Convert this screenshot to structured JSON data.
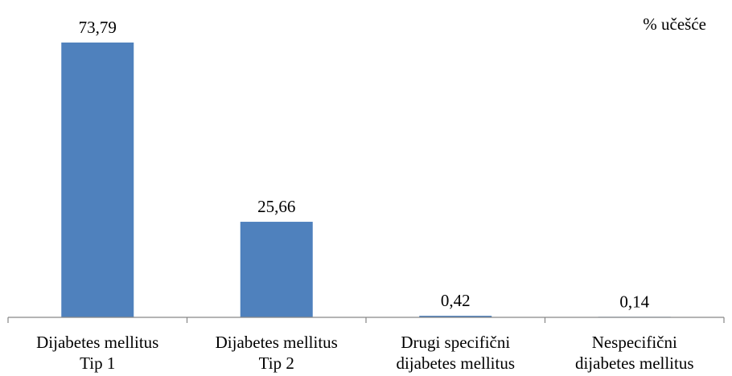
{
  "colors": {
    "bar": "#4f81bd",
    "axis": "#868686",
    "text": "#000000"
  },
  "chart_data": {
    "type": "bar",
    "unit_label": "% učešće",
    "categories": [
      [
        "Dijabetes mellitus",
        "Tip 1"
      ],
      [
        "Dijabetes mellitus",
        "Tip 2"
      ],
      [
        "Drugi specifični",
        "dijabetes mellitus"
      ],
      [
        "Nespecifični",
        "dijabetes mellitus"
      ]
    ],
    "values": [
      73.79,
      25.66,
      0.42,
      0.14
    ],
    "data_labels": [
      "73,79",
      "25,66",
      "0,42",
      "0,14"
    ],
    "ylim": [
      0,
      80
    ],
    "grid": false,
    "legend": "none"
  }
}
